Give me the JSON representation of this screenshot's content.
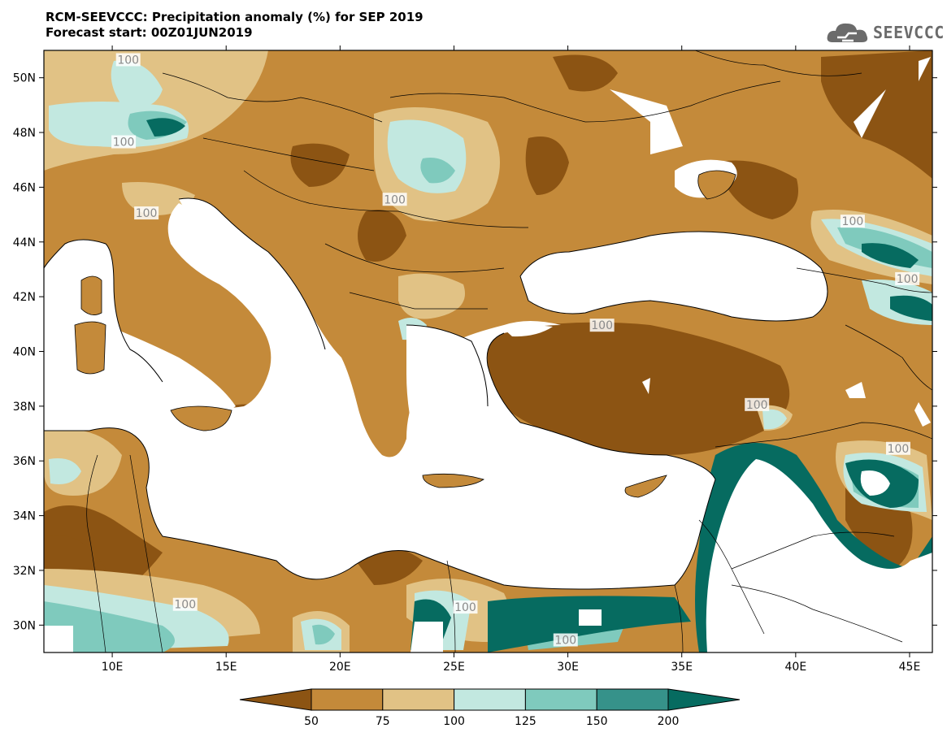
{
  "header": {
    "title_line1": "RCM-SEEVCCC: Precipitation anomaly (%) for SEP 2019",
    "title_line2": "Forecast start: 00Z01JUN2019"
  },
  "logo": {
    "text": "SEEVCCC",
    "icon": "cloud-icon"
  },
  "map": {
    "lat_ticks": [
      {
        "lat": 50,
        "label": "50N"
      },
      {
        "lat": 48,
        "label": "48N"
      },
      {
        "lat": 46,
        "label": "46N"
      },
      {
        "lat": 44,
        "label": "44N"
      },
      {
        "lat": 42,
        "label": "42N"
      },
      {
        "lat": 40,
        "label": "40N"
      },
      {
        "lat": 38,
        "label": "38N"
      },
      {
        "lat": 36,
        "label": "36N"
      },
      {
        "lat": 34,
        "label": "34N"
      },
      {
        "lat": 32,
        "label": "32N"
      },
      {
        "lat": 30,
        "label": "30N"
      }
    ],
    "lon_ticks": [
      {
        "lon": 10,
        "label": "10E"
      },
      {
        "lon": 15,
        "label": "15E"
      },
      {
        "lon": 20,
        "label": "20E"
      },
      {
        "lon": 25,
        "label": "25E"
      },
      {
        "lon": 30,
        "label": "30E"
      },
      {
        "lon": 35,
        "label": "35E"
      },
      {
        "lon": 40,
        "label": "40E"
      },
      {
        "lon": 45,
        "label": "45E"
      }
    ],
    "lon_range": [
      7,
      46
    ],
    "lat_range": [
      29,
      51
    ],
    "contour_labels": [
      {
        "text": "100",
        "lon": 10.7,
        "lat": 50.6
      },
      {
        "text": "100",
        "lon": 10.5,
        "lat": 47.6
      },
      {
        "text": "100",
        "lon": 11.5,
        "lat": 45.0
      },
      {
        "text": "100",
        "lon": 22.4,
        "lat": 45.5
      },
      {
        "text": "100",
        "lon": 42.5,
        "lat": 44.7
      },
      {
        "text": "100",
        "lon": 44.9,
        "lat": 42.6
      },
      {
        "text": "100",
        "lon": 31.5,
        "lat": 40.9
      },
      {
        "text": "100",
        "lon": 38.3,
        "lat": 38.0
      },
      {
        "text": "100",
        "lon": 44.5,
        "lat": 36.4
      },
      {
        "text": "100",
        "lon": 13.2,
        "lat": 30.7
      },
      {
        "text": "100",
        "lon": 25.5,
        "lat": 30.6
      },
      {
        "text": "100",
        "lon": 29.9,
        "lat": 29.4
      }
    ]
  },
  "colorbar": {
    "labels": [
      "50",
      "75",
      "100",
      "125",
      "150",
      "200"
    ],
    "colors": [
      "#8c5413",
      "#c48a3a",
      "#e1c285",
      "#c2e8e0",
      "#7fcabd",
      "#36928a",
      "#066b60"
    ]
  }
}
